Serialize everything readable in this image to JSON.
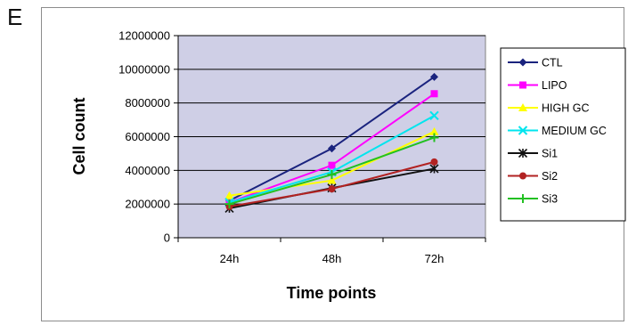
{
  "panel_label": "E",
  "chart_data": {
    "type": "line",
    "title": "",
    "xlabel": "Time points",
    "ylabel": "Cell count",
    "categories": [
      "24h",
      "48h",
      "72h"
    ],
    "ylim": [
      0,
      12000000
    ],
    "yticks": [
      0,
      2000000,
      4000000,
      6000000,
      8000000,
      10000000,
      12000000
    ],
    "ytick_labels": [
      "0",
      "2000000",
      "4000000",
      "6000000",
      "8000000",
      "10000000",
      "12000000"
    ],
    "grid": true,
    "plot_background": "#cfcfe6",
    "legend_position": "right",
    "series": [
      {
        "name": "CTL",
        "values": [
          2200000,
          5300000,
          9550000
        ],
        "color": "#1a237e",
        "marker": "diamond"
      },
      {
        "name": "LIPO",
        "values": [
          2100000,
          4300000,
          8550000
        ],
        "color": "#ff00ff",
        "marker": "square"
      },
      {
        "name": "HIGH GC",
        "values": [
          2500000,
          3400000,
          6300000
        ],
        "color": "#ffff00",
        "marker": "triangle"
      },
      {
        "name": "MEDIUM GC",
        "values": [
          2100000,
          3900000,
          7250000
        ],
        "color": "#00e5ee",
        "marker": "x"
      },
      {
        "name": "Si1",
        "values": [
          1750000,
          2950000,
          4100000
        ],
        "color": "#111111",
        "marker": "star"
      },
      {
        "name": "Si2",
        "values": [
          1850000,
          2900000,
          4500000
        ],
        "color": "#b22222",
        "marker": "circle"
      },
      {
        "name": "Si3",
        "values": [
          2000000,
          3750000,
          5950000
        ],
        "color": "#22c022",
        "marker": "plus"
      }
    ]
  }
}
